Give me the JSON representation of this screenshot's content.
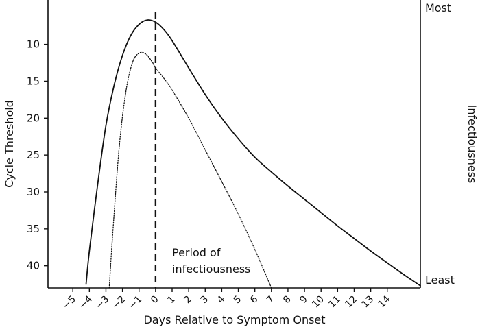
{
  "chart_data": {
    "type": "line",
    "xlabel": "Days Relative to Symptom Onset",
    "ylabel": "Cycle Threshold",
    "y2label": "Infectiousness",
    "y2_top_label": "Most",
    "y2_bottom_label": "Least",
    "xlim": [
      -6.5,
      16
    ],
    "ylim": [
      43,
      4
    ],
    "y_inverted": true,
    "x_ticks": [
      -5,
      -4,
      -3,
      -2,
      -1,
      0,
      1,
      2,
      3,
      4,
      5,
      6,
      7,
      8,
      9,
      10,
      11,
      12,
      13,
      14
    ],
    "x_tick_labels": [
      "−5",
      "−4",
      "−3",
      "−2",
      "−1",
      "0",
      "1",
      "2",
      "3",
      "4",
      "5",
      "6",
      "7",
      "8",
      "9",
      "10",
      "11",
      "12",
      "13",
      "14"
    ],
    "y_ticks": [
      10,
      15,
      20,
      25,
      30,
      35,
      40
    ],
    "y_tick_labels": [
      "10",
      "15",
      "20",
      "25",
      "30",
      "35",
      "40"
    ],
    "grid": false,
    "annotations": [
      {
        "text_lines": [
          "Period of",
          "infectiousness"
        ],
        "x": 0,
        "y": 40
      }
    ],
    "reference_lines": [
      {
        "orientation": "vertical",
        "x": 0,
        "style": "dashed"
      }
    ],
    "series": [
      {
        "style": "solid",
        "x": [
          -4.2,
          -4.0,
          -3.5,
          -3.0,
          -2.5,
          -2.0,
          -1.5,
          -1.0,
          -0.5,
          0.0,
          0.5,
          1.0,
          2.0,
          3.0,
          4.0,
          5.0,
          6.0,
          7.0,
          8.0,
          9.0,
          10.0,
          11.0,
          12.0,
          13.0,
          14.0,
          15.0,
          16.0
        ],
        "y": [
          42.5,
          38,
          29,
          21,
          15.5,
          11.5,
          8.8,
          7.3,
          6.7,
          7.0,
          8.0,
          9.5,
          13.2,
          16.8,
          20.0,
          22.8,
          25.3,
          27.3,
          29.2,
          31.0,
          32.8,
          34.6,
          36.3,
          38.0,
          39.6,
          41.2,
          42.7
        ]
      },
      {
        "style": "dotted",
        "x": [
          -2.8,
          -2.6,
          -2.2,
          -1.8,
          -1.4,
          -1.0,
          -0.6,
          -0.2,
          0.0,
          0.5,
          1.0,
          2.0,
          3.0,
          4.0,
          5.0,
          6.0,
          7.0
        ],
        "y": [
          43,
          36,
          24,
          16.5,
          12.5,
          11.2,
          11.3,
          12.4,
          13.2,
          14.6,
          16.2,
          20.0,
          24.3,
          28.6,
          33.0,
          37.8,
          43
        ]
      }
    ]
  }
}
